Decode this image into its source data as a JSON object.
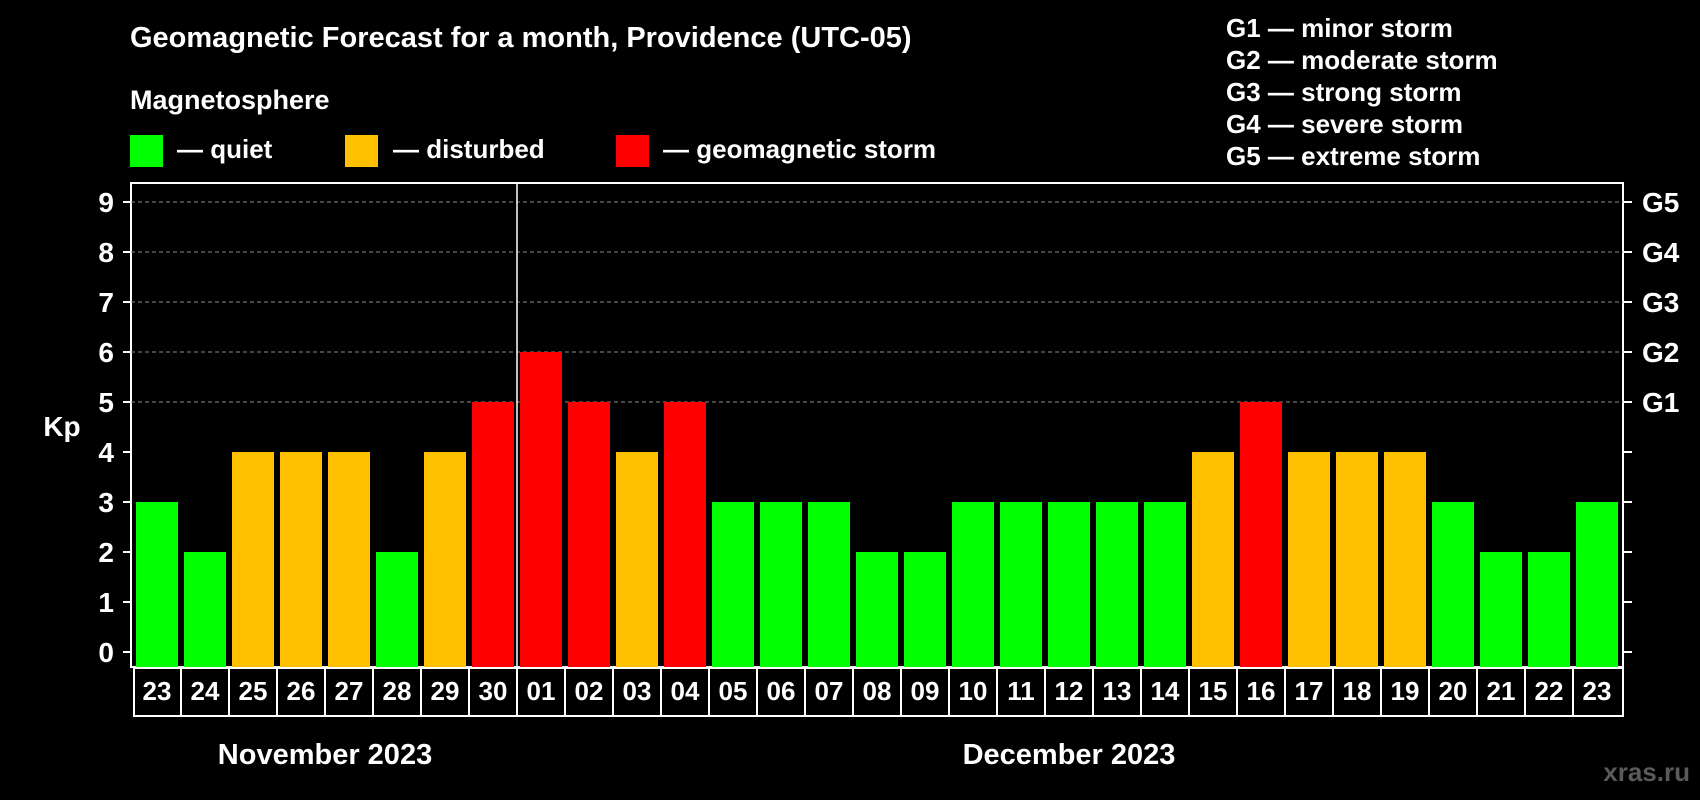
{
  "header": {
    "title": "Geomagnetic Forecast for a month, Providence (UTC-05)",
    "subtitle": "Magnetosphere",
    "watermark": "xras.ru"
  },
  "legend": {
    "quiet": {
      "label": "— quiet",
      "color": "#00ff00"
    },
    "disturbed": {
      "label": "— disturbed",
      "color": "#ffc000"
    },
    "storm": {
      "label": "— geomagnetic storm",
      "color": "#ff0000"
    }
  },
  "storm_scale": [
    "G1 — minor storm",
    "G2 — moderate storm",
    "G3 — strong storm",
    "G4 — severe storm",
    "G5 — extreme storm"
  ],
  "chart_data": {
    "type": "bar",
    "title": "Geomagnetic Forecast for a month, Providence (UTC-05)",
    "ylabel": "Kp",
    "ylim": [
      0,
      9
    ],
    "yticks": [
      "0",
      "1",
      "2",
      "3",
      "4",
      "5",
      "6",
      "7",
      "8",
      "9"
    ],
    "right_axis_labels": [
      {
        "kp": 5,
        "label": "G1"
      },
      {
        "kp": 6,
        "label": "G2"
      },
      {
        "kp": 7,
        "label": "G3"
      },
      {
        "kp": 8,
        "label": "G4"
      },
      {
        "kp": 9,
        "label": "G5"
      }
    ],
    "categories": [
      "23",
      "24",
      "25",
      "26",
      "27",
      "28",
      "29",
      "30",
      "01",
      "02",
      "03",
      "04",
      "05",
      "06",
      "07",
      "08",
      "09",
      "10",
      "11",
      "12",
      "13",
      "14",
      "15",
      "16",
      "17",
      "18",
      "19",
      "20",
      "21",
      "22",
      "23"
    ],
    "values": [
      3,
      2,
      4,
      4,
      4,
      2,
      4,
      5,
      6,
      5,
      4,
      5,
      3,
      3,
      3,
      2,
      2,
      3,
      3,
      3,
      3,
      3,
      4,
      5,
      4,
      4,
      4,
      3,
      2,
      2,
      3
    ],
    "months": [
      {
        "label": "November 2023",
        "start_index": 0,
        "end_index": 7
      },
      {
        "label": "December 2023",
        "start_index": 8,
        "end_index": 30
      }
    ],
    "month_divider_after_index": 7,
    "color_rule": {
      "quiet_max": 3,
      "disturbed": 4,
      "storm_min": 5
    }
  }
}
